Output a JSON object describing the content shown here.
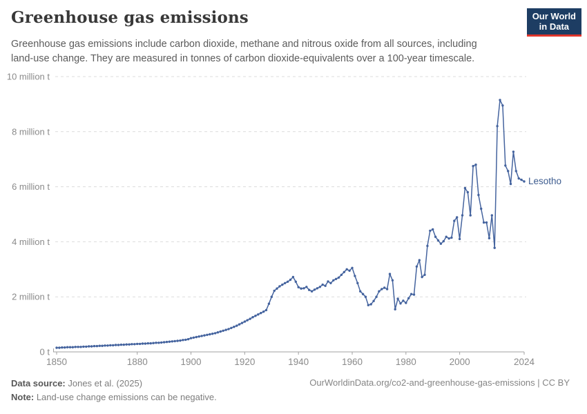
{
  "header": {
    "title": "Greenhouse gas emissions",
    "subtitle": "Greenhouse gas emissions include carbon dioxide, methane and nitrous oxide from all sources, including land-use change. They are measured in tonnes of carbon dioxide-equivalents over a 100-year timescale.",
    "logo": {
      "line1": "Our World",
      "line2": "in Data",
      "bg_color": "#1d3d63",
      "bar_color": "#e0352b"
    }
  },
  "chart_data": {
    "type": "line",
    "title": "Greenhouse gas emissions",
    "entity": "Lesotho",
    "line_color": "#44639e",
    "label_color": "#3d5c8f",
    "grid": "dashed horizontal gridlines",
    "legend_position": "end-of-line label",
    "xlim": [
      1850,
      2024
    ],
    "ylim": [
      0,
      10
    ],
    "y_unit": "million t",
    "y_ticks": [
      {
        "value": 0,
        "label": "0 t"
      },
      {
        "value": 2,
        "label": "2 million t"
      },
      {
        "value": 4,
        "label": "4 million t"
      },
      {
        "value": 6,
        "label": "6 million t"
      },
      {
        "value": 8,
        "label": "8 million t"
      },
      {
        "value": 10,
        "label": "10 million t"
      }
    ],
    "x_ticks": [
      1850,
      1880,
      1900,
      1920,
      1940,
      1960,
      1980,
      2000,
      2024
    ],
    "years_range": [
      1850,
      2024
    ],
    "values": [
      0.15,
      0.15,
      0.16,
      0.16,
      0.17,
      0.17,
      0.17,
      0.18,
      0.18,
      0.18,
      0.19,
      0.19,
      0.2,
      0.2,
      0.21,
      0.21,
      0.22,
      0.22,
      0.23,
      0.23,
      0.24,
      0.24,
      0.25,
      0.25,
      0.26,
      0.26,
      0.27,
      0.27,
      0.28,
      0.28,
      0.29,
      0.29,
      0.3,
      0.3,
      0.31,
      0.31,
      0.32,
      0.33,
      0.33,
      0.34,
      0.35,
      0.36,
      0.37,
      0.38,
      0.39,
      0.4,
      0.41,
      0.43,
      0.44,
      0.46,
      0.5,
      0.52,
      0.54,
      0.56,
      0.58,
      0.6,
      0.62,
      0.64,
      0.66,
      0.68,
      0.71,
      0.74,
      0.77,
      0.8,
      0.83,
      0.87,
      0.91,
      0.95,
      1.0,
      1.05,
      1.1,
      1.15,
      1.2,
      1.26,
      1.31,
      1.36,
      1.41,
      1.46,
      1.52,
      1.75,
      2.0,
      2.22,
      2.3,
      2.38,
      2.44,
      2.5,
      2.55,
      2.62,
      2.72,
      2.55,
      2.35,
      2.3,
      2.31,
      2.36,
      2.25,
      2.2,
      2.26,
      2.31,
      2.36,
      2.44,
      2.4,
      2.56,
      2.5,
      2.6,
      2.65,
      2.7,
      2.8,
      2.9,
      3.0,
      2.95,
      3.05,
      2.76,
      2.5,
      2.2,
      2.1,
      2.0,
      1.7,
      1.73,
      1.85,
      2.0,
      2.2,
      2.28,
      2.33,
      2.28,
      2.83,
      2.6,
      1.55,
      1.93,
      1.76,
      1.86,
      1.78,
      1.95,
      2.1,
      2.08,
      3.1,
      3.33,
      2.72,
      2.8,
      3.85,
      4.4,
      4.45,
      4.18,
      4.05,
      3.93,
      4.02,
      4.18,
      4.12,
      4.15,
      4.76,
      4.89,
      4.1,
      4.96,
      5.95,
      5.8,
      4.96,
      6.75,
      6.8,
      5.7,
      5.2,
      4.7,
      4.7,
      4.13,
      4.96,
      3.78,
      8.2,
      9.15,
      8.95,
      6.77,
      6.57,
      6.1,
      7.27,
      6.57,
      6.3,
      6.25,
      6.19
    ]
  },
  "footer": {
    "datasource_label": "Data source:",
    "datasource_value": " Jones et al. (2025)",
    "note_label": "Note:",
    "note_value": " Land-use change emissions can be negative.",
    "url_text": "OurWorldinData.org/co2-and-greenhouse-gas-emissions | CC BY"
  }
}
